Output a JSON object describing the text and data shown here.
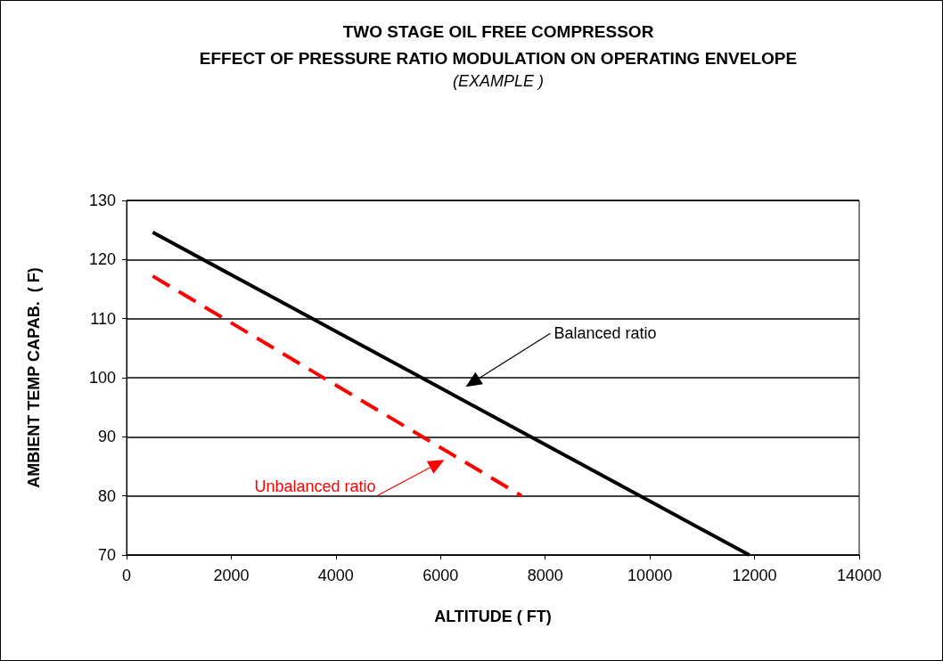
{
  "chart_data": {
    "type": "line",
    "title": "TWO STAGE OIL FREE COMPRESSOR\nEFFECT OF PRESSURE RATIO MODULATION ON OPERATING ENVELOPE",
    "subtitle": "(EXAMPLE )",
    "xlabel": "ALTITUDE ( FT)",
    "ylabel": "AMBIENT TEMP CAPAB.  ( F)",
    "series": [
      {
        "name": "Balanced ratio",
        "color": "#000000",
        "x": [
          500,
          11900
        ],
        "values": [
          124.6,
          70
        ],
        "line_style": "solid"
      },
      {
        "name": "Unbalanced ratio",
        "color": "#ff0000",
        "x": [
          500,
          7550
        ],
        "values": [
          117.2,
          80
        ],
        "line_style": "dashed"
      }
    ],
    "xlim": [
      0,
      14000
    ],
    "xticks": [
      0,
      2000,
      4000,
      6000,
      8000,
      10000,
      12000,
      14000
    ],
    "ylim": [
      70,
      130
    ],
    "yticks": [
      70,
      80,
      90,
      100,
      110,
      120,
      130
    ],
    "grid": "y",
    "marker": "none"
  }
}
